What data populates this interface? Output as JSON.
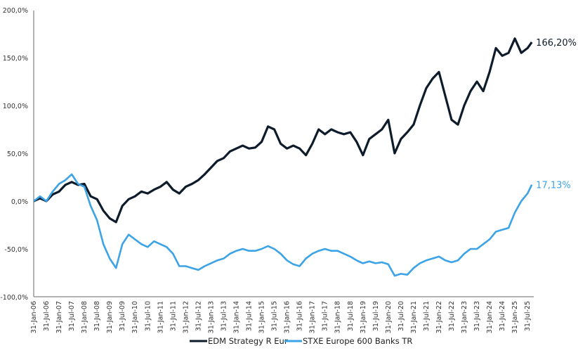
{
  "chart_data": {
    "type": "line",
    "title": "",
    "xlabel": "",
    "ylabel": "",
    "ylim": [
      -100,
      200
    ],
    "y_ticks": [
      "200,0%",
      "150,0%",
      "100,0%",
      "50,0%",
      "0,0%",
      "-50,0%",
      "-100,0%"
    ],
    "y_tick_values": [
      200,
      150,
      100,
      50,
      0,
      -50,
      -100
    ],
    "x_ticks": [
      "31-Jan-06",
      "31-Jul-06",
      "31-Jan-07",
      "31-Jul-07",
      "31-Jan-08",
      "31-Jul-08",
      "31-Jan-09",
      "31-Jul-09",
      "31-Jan-10",
      "31-Jul-10",
      "31-Jan-11",
      "31-Jul-11",
      "31-Jan-12",
      "31-Jul-12",
      "31-Jan-13",
      "31-Jul-13",
      "31-Jan-14",
      "31-Jul-14",
      "31-Jan-15",
      "31-Jul-15",
      "31-Jan-16",
      "31-Jul-16",
      "31-Jan-17",
      "31-Jul-17",
      "31-Jan-18",
      "31-Jul-18",
      "31-Jan-19",
      "31-Jul-19",
      "31-Jan-20",
      "31-Jul-20",
      "31-Jan-21",
      "31-Jul-21",
      "31-Jan-22",
      "31-Jul-22",
      "31-Jan-23",
      "31-Jul-23",
      "31-Jan-24",
      "31-Jul-24",
      "31-Jan-25",
      "31-Jul-25"
    ],
    "x_months": [
      0,
      3,
      6,
      9,
      12,
      15,
      18,
      21,
      24,
      27,
      30,
      33,
      36,
      39,
      42,
      45,
      48,
      51,
      54,
      57,
      60,
      63,
      66,
      69,
      72,
      75,
      78,
      81,
      84,
      87,
      90,
      93,
      96,
      99,
      102,
      105,
      108,
      111,
      114,
      117,
      120,
      123,
      126,
      129,
      132,
      135,
      138,
      141,
      144,
      147,
      150,
      153,
      156,
      159,
      162,
      165,
      168,
      171,
      174,
      177,
      180,
      183,
      186,
      189,
      192,
      195,
      198,
      201,
      204,
      207,
      210,
      213,
      216,
      219,
      222,
      225,
      228,
      231,
      234,
      236
    ],
    "x_unit": "months since Jan-2006",
    "series": [
      {
        "name": "EDM Strategy R Eur",
        "color": "#0d1b2a",
        "end_label": "166,20%",
        "values": [
          0,
          3,
          0,
          7,
          10,
          17,
          20,
          17,
          18,
          5,
          2,
          -10,
          -18,
          -22,
          -5,
          2,
          5,
          10,
          8,
          12,
          15,
          20,
          12,
          8,
          15,
          18,
          22,
          28,
          35,
          42,
          45,
          52,
          55,
          58,
          55,
          56,
          62,
          78,
          75,
          60,
          55,
          58,
          55,
          48,
          60,
          75,
          70,
          75,
          72,
          70,
          72,
          62,
          48,
          65,
          70,
          75,
          85,
          50,
          65,
          72,
          80,
          100,
          118,
          128,
          135,
          110,
          85,
          80,
          100,
          115,
          125,
          115,
          135,
          160,
          152,
          155,
          170,
          155,
          160,
          166.2
        ]
      },
      {
        "name": "STXE Europe 600 Banks TR",
        "color": "#3ba3e6",
        "end_label": "17,13%",
        "values": [
          0,
          5,
          0,
          10,
          18,
          22,
          28,
          18,
          15,
          -5,
          -20,
          -45,
          -60,
          -70,
          -45,
          -35,
          -40,
          -45,
          -48,
          -42,
          -45,
          -48,
          -55,
          -68,
          -68,
          -70,
          -72,
          -68,
          -65,
          -62,
          -60,
          -55,
          -52,
          -50,
          -52,
          -52,
          -50,
          -47,
          -50,
          -55,
          -62,
          -66,
          -68,
          -60,
          -55,
          -52,
          -50,
          -52,
          -52,
          -55,
          -58,
          -62,
          -65,
          -63,
          -65,
          -64,
          -66,
          -78,
          -76,
          -77,
          -70,
          -65,
          -62,
          -60,
          -58,
          -62,
          -64,
          -62,
          -55,
          -50,
          -50,
          -45,
          -40,
          -32,
          -30,
          -28,
          -12,
          0,
          8,
          17.13
        ]
      }
    ],
    "legend": "bottom-center",
    "grid": false
  }
}
